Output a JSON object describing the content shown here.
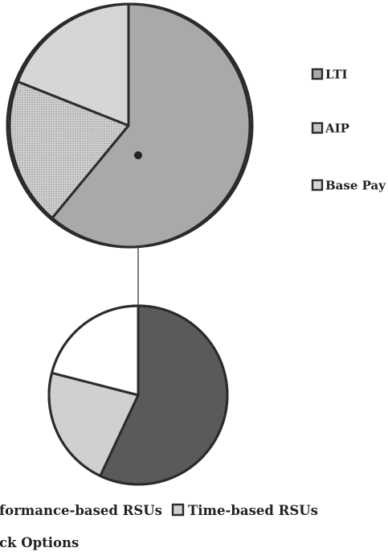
{
  "chart_data": [
    {
      "type": "pie",
      "categories": [
        "LTI",
        "AIP",
        "Base Pay"
      ],
      "values": [
        61,
        20,
        19
      ],
      "colors": {
        "LTI": "#a9a9a9",
        "AIP": "#c4c4c4",
        "Base Pay": "#d6d6d6"
      },
      "patterns": {
        "AIP": "dotted"
      },
      "legend": [
        "LTI",
        "AIP",
        "Base Pay"
      ],
      "legend_placement": "right"
    },
    {
      "type": "pie",
      "categories": [
        "Performance-based RSUs",
        "Time-based RSUs",
        "Stock Options"
      ],
      "values": [
        57,
        22,
        21
      ],
      "colors": {
        "Performance-based RSUs": "#5a5a5a",
        "Time-based RSUs": "#d0d0d0",
        "Stock Options": "#ffffff"
      },
      "legend": [
        "Performance-based RSUs",
        "Time-based RSUs",
        "Stock Options"
      ],
      "legend_visible_text": [
        "formance-based RSUs",
        "Time-based RSUs",
        "ck Options"
      ],
      "legend_placement": "bottom",
      "breakout_of": "LTI"
    }
  ],
  "theme": {
    "outline": "#2b2b2b",
    "connector": "#555555",
    "text": "#222222"
  }
}
